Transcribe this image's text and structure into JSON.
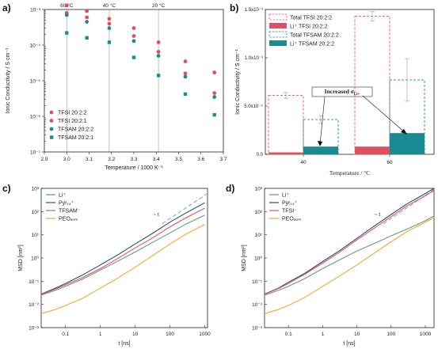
{
  "colors": {
    "red": "#e0505e",
    "teal": "#1a8b95",
    "darkblue": "#1f4f7a",
    "green": "#6a9a7a",
    "orange": "#f0a830",
    "gray": "#9a9a9a"
  },
  "chart_data": [
    {
      "panel": "a)",
      "type": "scatter",
      "xlabel": "Temperature / 1000 K⁻¹",
      "ylabel": "Ionic Conductivity / S cm⁻¹",
      "xlim": [
        2.9,
        3.7
      ],
      "ylim_log10": [
        -7,
        -3
      ],
      "x_ticks": [
        "2.9",
        "3.0",
        "3.1",
        "3.2",
        "3.3",
        "3.4",
        "3.5",
        "3.6",
        "3.7"
      ],
      "y_ticks": [
        "10⁻⁷",
        "10⁻⁶",
        "10⁻⁵",
        "10⁻⁴",
        "10⁻³"
      ],
      "top_labels": [
        {
          "text": "60 °C",
          "x": 3.0
        },
        {
          "text": "40 °C",
          "x": 3.19
        },
        {
          "text": "20 °C",
          "x": 3.41
        }
      ],
      "x": [
        3.0,
        3.09,
        3.19,
        3.3,
        3.41,
        3.53,
        3.66
      ],
      "series": [
        {
          "name": "TFSI 20:2:2",
          "marker": "circle",
          "color": "red",
          "values": [
            0.0013,
            0.0009,
            0.00055,
            0.0003,
            0.00012,
            3.5e-05,
            1.7e-05
          ]
        },
        {
          "name": "TFSI 20:2:1",
          "marker": "circle",
          "color": "red",
          "values": [
            0.0008,
            0.0006,
            0.0004,
            0.00018,
            6.5e-05,
            1.6e-05,
            4.5e-06
          ]
        },
        {
          "name": "TFSAM 20:2:2",
          "marker": "circle",
          "color": "teal",
          "values": [
            0.0007,
            0.00045,
            0.0003,
            0.00013,
            5e-05,
            1.3e-05,
            3.5e-06
          ]
        },
        {
          "name": "TFSAM 20:2:1",
          "marker": "square",
          "color": "teal",
          "values": [
            0.00022,
            0.00016,
            0.00012,
            4.5e-05,
            1.4e-05,
            4.2e-06,
            1.1e-06
          ]
        }
      ]
    },
    {
      "panel": "b)",
      "type": "bar",
      "xlabel": "Temperature / °C",
      "ylabel": "Ionic Conductivity / S cm⁻¹",
      "categories": [
        "40",
        "60"
      ],
      "y_ticks": [
        "0.0",
        "5.0x10⁻⁴",
        "1.0x10⁻³",
        "1.5x10⁻³"
      ],
      "ylim": [
        0,
        0.0015
      ],
      "annotation": "Increased σ",
      "annotation_sub": "Li+",
      "series": [
        {
          "name": "Total TFSI 20:2:2",
          "style": "dashed",
          "color": "red",
          "values": [
            0.00061,
            0.00143
          ]
        },
        {
          "name": "Li⁺ TFSI 20:2:2",
          "style": "filled",
          "color": "red",
          "values": [
            2e-05,
            8e-05
          ]
        },
        {
          "name": "Total TFSAM 20:2:2",
          "style": "dashed",
          "color": "teal",
          "values": [
            0.00036,
            0.00077
          ]
        },
        {
          "name": "Li⁺ TFSAM 20:2:2",
          "style": "filled",
          "color": "teal",
          "values": [
            8e-05,
            0.00022
          ]
        }
      ]
    },
    {
      "panel": "c)",
      "type": "line",
      "xlabel": "t [ns]",
      "ylabel": "MSD [nm²]",
      "x_ticks": [
        "0.1",
        "1",
        "10",
        "100",
        "1000"
      ],
      "y_ticks": [
        "10⁻³",
        "10⁻²",
        "10⁻¹",
        "10⁰",
        "10¹",
        "10²",
        "10³"
      ],
      "guide_label": "~ t",
      "t": [
        0.02,
        0.05,
        0.1,
        0.3,
        1,
        3,
        10,
        30,
        100,
        300,
        1000
      ],
      "series": [
        {
          "name": "Li⁺",
          "color": "green",
          "values": [
            0.025,
            0.04,
            0.06,
            0.12,
            0.3,
            0.7,
            1.8,
            4.5,
            12,
            30,
            70
          ]
        },
        {
          "name": "Pyr₁₄⁺",
          "color": "darkblue",
          "values": [
            0.028,
            0.05,
            0.08,
            0.18,
            0.5,
            1.3,
            4,
            11,
            35,
            90,
            240
          ]
        },
        {
          "name": "TFSAM⁻",
          "color": "red",
          "values": [
            0.027,
            0.045,
            0.07,
            0.14,
            0.35,
            0.9,
            2.7,
            7,
            22,
            55,
            140
          ]
        },
        {
          "name": "PEOₑₒₘ",
          "color": "orange",
          "values": [
            0.004,
            0.006,
            0.009,
            0.018,
            0.05,
            0.13,
            0.4,
            1.2,
            4,
            11,
            28
          ]
        }
      ]
    },
    {
      "panel": "d)",
      "type": "line",
      "xlabel": "t [ns]",
      "ylabel": "MSD [nm²]",
      "x_ticks": [
        "0.1",
        "1",
        "10",
        "100",
        "1000"
      ],
      "y_ticks": [
        "10⁻³",
        "10⁻²",
        "10⁻¹",
        "10⁰",
        "10¹",
        "10²",
        "10³"
      ],
      "guide_label": "~ t",
      "t": [
        0.02,
        0.05,
        0.1,
        0.3,
        1,
        3,
        10,
        30,
        100,
        300,
        1000,
        1800
      ],
      "series": [
        {
          "name": "Li⁺",
          "color": "green",
          "values": [
            0.025,
            0.04,
            0.06,
            0.13,
            0.35,
            0.8,
            2,
            4,
            9,
            18,
            40,
            65
          ]
        },
        {
          "name": "Pyr₁₄⁺",
          "color": "darkblue",
          "values": [
            0.028,
            0.05,
            0.09,
            0.22,
            0.7,
            2,
            7,
            22,
            75,
            220,
            600,
            1000
          ]
        },
        {
          "name": "TFSI⁻",
          "color": "red",
          "values": [
            0.027,
            0.048,
            0.08,
            0.2,
            0.6,
            1.7,
            6,
            18,
            60,
            180,
            480,
            800
          ]
        },
        {
          "name": "PEOₑₒₘ",
          "color": "orange",
          "values": [
            0.004,
            0.006,
            0.009,
            0.02,
            0.06,
            0.16,
            0.5,
            1.5,
            5,
            14,
            35,
            55
          ]
        }
      ]
    }
  ]
}
